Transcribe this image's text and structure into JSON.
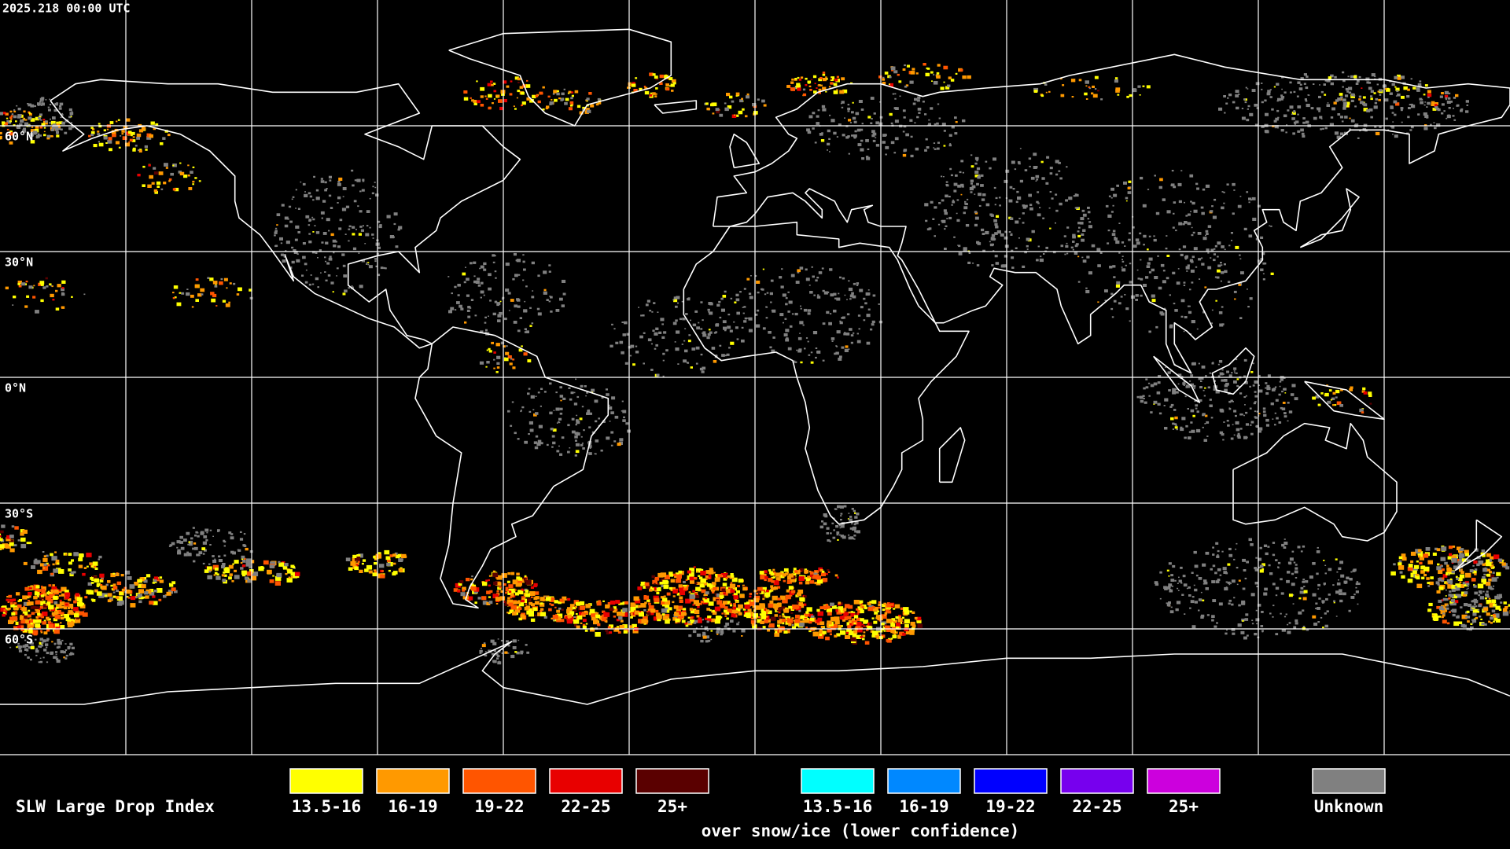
{
  "header": {
    "timestamp": "2025.218 00:00 UTC"
  },
  "map": {
    "latitude_labels": [
      "60°N",
      "30°N",
      "0°N",
      "30°S",
      "60°S"
    ]
  },
  "legend": {
    "title": "SLW Large Drop Index",
    "liquid": [
      {
        "label": "13.5-16",
        "color": "#ffff00"
      },
      {
        "label": "16-19",
        "color": "#ff9900"
      },
      {
        "label": "19-22",
        "color": "#ff5500"
      },
      {
        "label": "22-25",
        "color": "#e80000"
      },
      {
        "label": "25+",
        "color": "#5a0000"
      }
    ],
    "snow_ice": [
      {
        "label": "13.5-16",
        "color": "#00ffff"
      },
      {
        "label": "16-19",
        "color": "#0088ff"
      },
      {
        "label": "19-22",
        "color": "#0000ff"
      },
      {
        "label": "22-25",
        "color": "#7700ee"
      },
      {
        "label": "25+",
        "color": "#cc00dd"
      }
    ],
    "snow_ice_note": "over snow/ice (lower confidence)",
    "unknown": {
      "label": "Unknown",
      "color": "#808080"
    }
  }
}
